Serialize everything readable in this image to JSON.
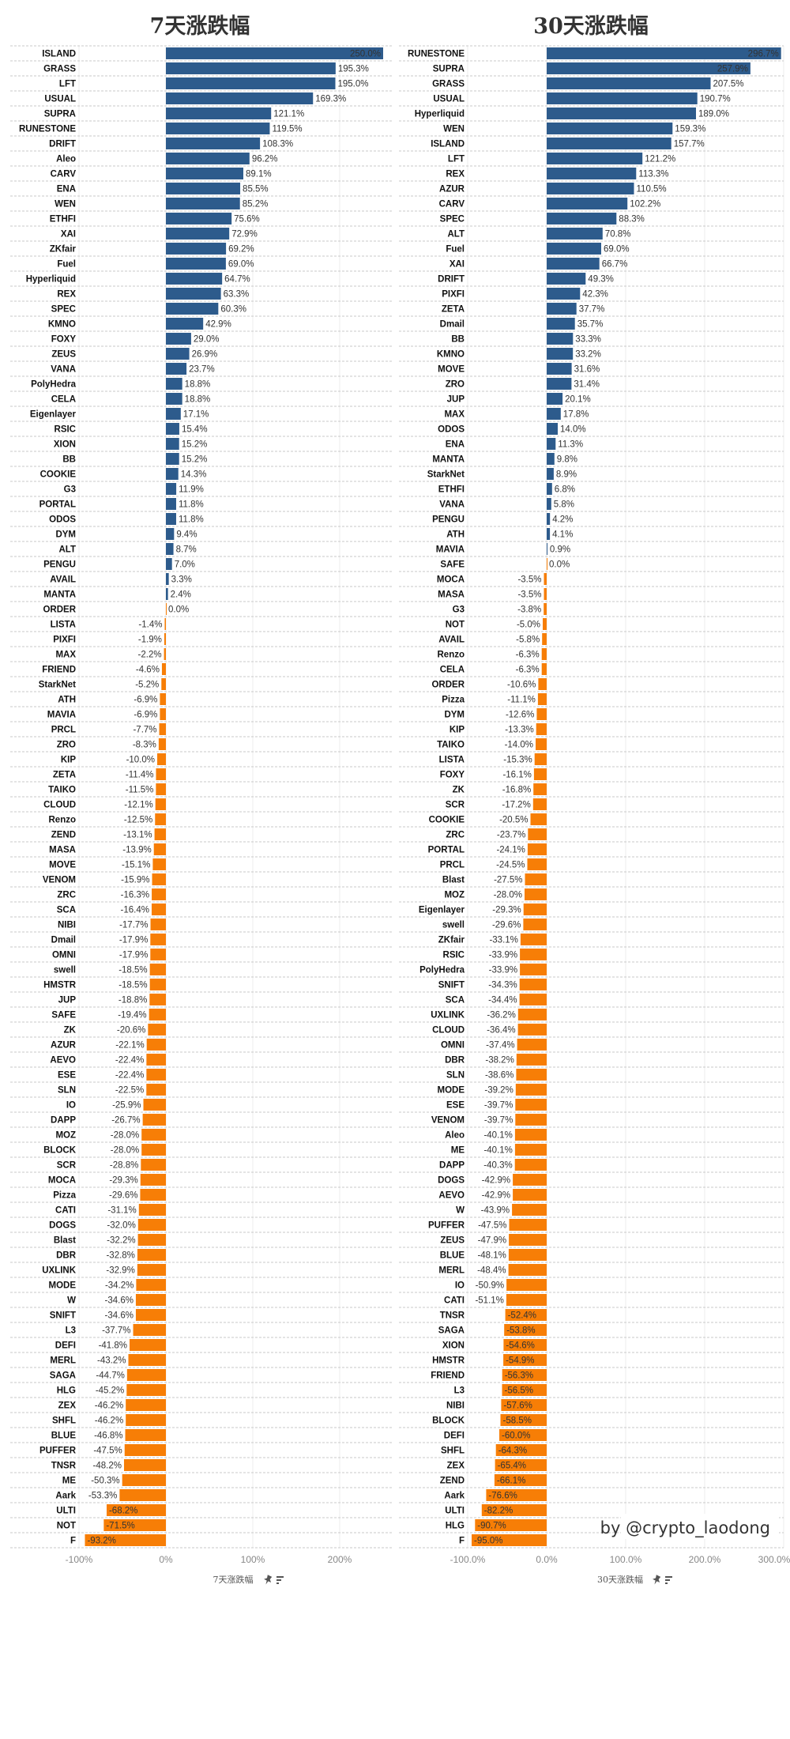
{
  "watermark": "by @crypto_laodong",
  "colors": {
    "positive": "#2d5b8c",
    "negative": "#f77e06",
    "grid": "#ececec",
    "row_divider": "#c8c8c8"
  },
  "chart_data": [
    {
      "type": "bar",
      "orientation": "horizontal",
      "title": "7天涨跌幅",
      "xlabel": "7天涨跌幅",
      "xlabel_icons": [
        "pin-icon",
        "sort-icon"
      ],
      "xticks": [
        "-100%",
        "0%",
        "100%",
        "200%"
      ],
      "xtick_values": [
        -100,
        0,
        100,
        200
      ],
      "xlim": [
        -100,
        250
      ],
      "unit": "%",
      "grid": true,
      "categories": [
        "ISLAND",
        "GRASS",
        "LFT",
        "USUAL",
        "SUPRA",
        "RUNESTONE",
        "DRIFT",
        "Aleo",
        "CARV",
        "ENA",
        "WEN",
        "ETHFI",
        "XAI",
        "ZKfair",
        "Fuel",
        "Hyperliquid",
        "REX",
        "SPEC",
        "KMNO",
        "FOXY",
        "ZEUS",
        "VANA",
        "PolyHedra",
        "CELA",
        "Eigenlayer",
        "RSIC",
        "XION",
        "BB",
        "COOKIE",
        "G3",
        "PORTAL",
        "ODOS",
        "DYM",
        "ALT",
        "PENGU",
        "AVAIL",
        "MANTA",
        "ORDER",
        "LISTA",
        "PIXFI",
        "MAX",
        "FRIEND",
        "StarkNet",
        "ATH",
        "MAVIA",
        "PRCL",
        "ZRO",
        "KIP",
        "ZETA",
        "TAIKO",
        "CLOUD",
        "Renzo",
        "ZEND",
        "MASA",
        "MOVE",
        "VENOM",
        "ZRC",
        "SCA",
        "NIBI",
        "Dmail",
        "OMNI",
        "swell",
        "HMSTR",
        "JUP",
        "SAFE",
        "ZK",
        "AZUR",
        "AEVO",
        "ESE",
        "SLN",
        "IO",
        "DAPP",
        "MOZ",
        "BLOCK",
        "SCR",
        "MOCA",
        "Pizza",
        "CATI",
        "DOGS",
        "Blast",
        "DBR",
        "UXLINK",
        "MODE",
        "W",
        "SNIFT",
        "L3",
        "DEFI",
        "MERL",
        "SAGA",
        "HLG",
        "ZEX",
        "SHFL",
        "BLUE",
        "PUFFER",
        "TNSR",
        "ME",
        "Aark",
        "ULTI",
        "NOT",
        "F"
      ],
      "values": [
        250.0,
        195.3,
        195.0,
        169.3,
        121.1,
        119.5,
        108.3,
        96.2,
        89.1,
        85.5,
        85.2,
        75.6,
        72.9,
        69.2,
        69.0,
        64.7,
        63.3,
        60.3,
        42.9,
        29.0,
        26.9,
        23.7,
        18.8,
        18.8,
        17.1,
        15.4,
        15.2,
        15.2,
        14.3,
        11.9,
        11.8,
        11.8,
        9.4,
        8.7,
        7.0,
        3.3,
        2.4,
        0.0,
        -1.4,
        -1.9,
        -2.2,
        -4.6,
        -5.2,
        -6.9,
        -6.9,
        -7.7,
        -8.3,
        -10.0,
        -11.4,
        -11.5,
        -12.1,
        -12.5,
        -13.1,
        -13.9,
        -15.1,
        -15.9,
        -16.3,
        -16.4,
        -17.7,
        -17.9,
        -17.9,
        -18.5,
        -18.5,
        -18.8,
        -19.4,
        -20.6,
        -22.1,
        -22.4,
        -22.4,
        -22.5,
        -25.9,
        -26.7,
        -28.0,
        -28.0,
        -28.8,
        -29.3,
        -29.6,
        -31.1,
        -32.0,
        -32.2,
        -32.8,
        -32.9,
        -34.2,
        -34.6,
        -34.6,
        -37.7,
        -41.8,
        -43.2,
        -44.7,
        -45.2,
        -46.2,
        -46.2,
        -46.8,
        -47.5,
        -48.2,
        -50.3,
        -53.3,
        -68.2,
        -71.5,
        -93.2
      ]
    },
    {
      "type": "bar",
      "orientation": "horizontal",
      "title": "30天涨跌幅",
      "xlabel": "30天涨跌幅",
      "xlabel_icons": [
        "pin-icon",
        "sort-icon"
      ],
      "xticks": [
        "-100.0%",
        "0.0%",
        "100.0%",
        "200.0%",
        "300.0%"
      ],
      "xtick_values": [
        -100,
        0,
        100,
        200,
        300
      ],
      "xlim": [
        -100,
        300
      ],
      "unit": "%",
      "grid": true,
      "categories": [
        "RUNESTONE",
        "SUPRA",
        "GRASS",
        "USUAL",
        "Hyperliquid",
        "WEN",
        "ISLAND",
        "LFT",
        "REX",
        "AZUR",
        "CARV",
        "SPEC",
        "ALT",
        "Fuel",
        "XAI",
        "DRIFT",
        "PIXFI",
        "ZETA",
        "Dmail",
        "BB",
        "KMNO",
        "MOVE",
        "ZRO",
        "JUP",
        "MAX",
        "ODOS",
        "ENA",
        "MANTA",
        "StarkNet",
        "ETHFI",
        "VANA",
        "PENGU",
        "ATH",
        "MAVIA",
        "SAFE",
        "MOCA",
        "MASA",
        "G3",
        "NOT",
        "AVAIL",
        "Renzo",
        "CELA",
        "ORDER",
        "Pizza",
        "DYM",
        "KIP",
        "TAIKO",
        "LISTA",
        "FOXY",
        "ZK",
        "SCR",
        "COOKIE",
        "ZRC",
        "PORTAL",
        "PRCL",
        "Blast",
        "MOZ",
        "Eigenlayer",
        "swell",
        "ZKfair",
        "RSIC",
        "PolyHedra",
        "SNIFT",
        "SCA",
        "UXLINK",
        "CLOUD",
        "OMNI",
        "DBR",
        "SLN",
        "MODE",
        "ESE",
        "VENOM",
        "Aleo",
        "ME",
        "DAPP",
        "DOGS",
        "AEVO",
        "W",
        "PUFFER",
        "ZEUS",
        "BLUE",
        "MERL",
        "IO",
        "CATI",
        "TNSR",
        "SAGA",
        "XION",
        "HMSTR",
        "FRIEND",
        "L3",
        "NIBI",
        "BLOCK",
        "DEFI",
        "SHFL",
        "ZEX",
        "ZEND",
        "Aark",
        "ULTI",
        "HLG",
        "F"
      ],
      "values": [
        296.7,
        257.9,
        207.5,
        190.7,
        189.0,
        159.3,
        157.7,
        121.2,
        113.3,
        110.5,
        102.2,
        88.3,
        70.8,
        69.0,
        66.7,
        49.3,
        42.3,
        37.7,
        35.7,
        33.3,
        33.2,
        31.6,
        31.4,
        20.1,
        17.8,
        14.0,
        11.3,
        9.8,
        8.9,
        6.8,
        5.8,
        4.2,
        4.1,
        0.9,
        0.0,
        -3.5,
        -3.5,
        -3.8,
        -5.0,
        -5.8,
        -6.3,
        -6.3,
        -10.6,
        -11.1,
        -12.6,
        -13.3,
        -14.0,
        -15.3,
        -16.1,
        -16.8,
        -17.2,
        -20.5,
        -23.7,
        -24.1,
        -24.5,
        -27.5,
        -28.0,
        -29.3,
        -29.6,
        -33.1,
        -33.9,
        -33.9,
        -34.3,
        -34.4,
        -36.2,
        -36.4,
        -37.4,
        -38.2,
        -38.6,
        -39.2,
        -39.7,
        -39.7,
        -40.1,
        -40.1,
        -40.3,
        -42.9,
        -42.9,
        -43.9,
        -47.5,
        -47.9,
        -48.1,
        -48.4,
        -50.9,
        -51.1,
        -52.4,
        -53.8,
        -54.6,
        -54.9,
        -56.3,
        -56.5,
        -57.6,
        -58.5,
        -60.0,
        -64.3,
        -65.4,
        -66.1,
        -76.6,
        -82.2,
        -90.7,
        -95.0
      ]
    }
  ]
}
